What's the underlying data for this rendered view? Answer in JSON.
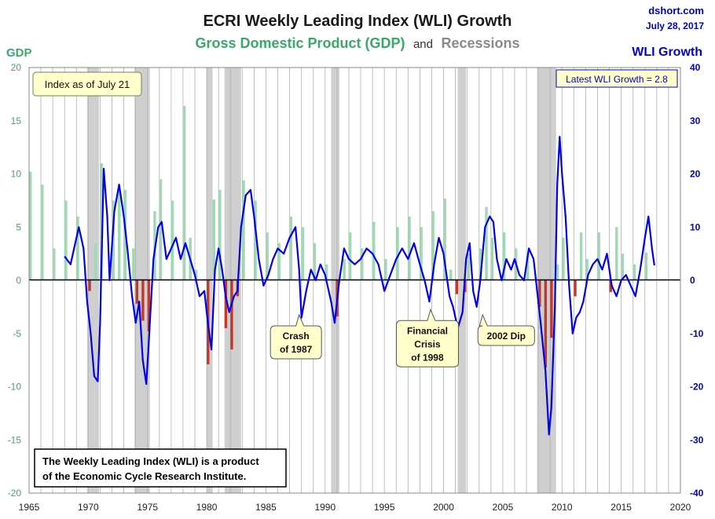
{
  "source": "dshort.com",
  "date": "July 28, 2017",
  "title": "ECRI Weekly Leading Index (WLI) Growth",
  "subtitle_gdp": "Gross Domestic Product (GDP)",
  "subtitle_and": "and",
  "subtitle_rec": "Recessions",
  "left_axis_label": "GDP",
  "right_axis_label": "WLI Growth",
  "index_note": "Index as of July 21",
  "latest_note": "Latest WLI Growth = 2.8",
  "footnote_line1": "The Weekly Leading Index (WLI) is a product",
  "footnote_line2": "of the Economic Cycle Research Institute.",
  "annotations": [
    {
      "lines": [
        "Crash",
        "of 1987"
      ],
      "x": 1987.8,
      "wli": -6.5
    },
    {
      "lines": [
        "Financial",
        "Crisis",
        "of 1998"
      ],
      "x": 1998.9,
      "wli": -5.5
    },
    {
      "lines": [
        "2002 Dip"
      ],
      "x": 2003.3,
      "wli": -6.5
    }
  ],
  "colors": {
    "gdp_positive": "#9fd8b2",
    "gdp_negative": "#c0392b",
    "wli_line": "#0000ee",
    "recession": "#cfcfcf",
    "title": "#1a1a1a",
    "gdp_text": "#3aa86a",
    "rec_text": "#8a8a8a",
    "wli_text": "#0000cc",
    "callout_bg": "#ffffcc"
  },
  "chart_data": {
    "type": "bar+line",
    "xlim": [
      1965,
      2020
    ],
    "x_ticks": [
      1965,
      1970,
      1975,
      1980,
      1985,
      1990,
      1995,
      2000,
      2005,
      2010,
      2015,
      2020
    ],
    "gdp_axis": {
      "label": "GDP",
      "ylim": [
        -20,
        20
      ],
      "ticks": [
        -20,
        -15,
        -10,
        -5,
        0,
        5,
        10,
        15,
        20
      ]
    },
    "wli_axis": {
      "label": "WLI Growth",
      "ylim": [
        -40,
        40
      ],
      "ticks": [
        -40,
        -30,
        -20,
        -10,
        0,
        10,
        20,
        30,
        40
      ]
    },
    "grid": true,
    "recessions": [
      [
        1969.9,
        1970.9
      ],
      [
        1973.9,
        1975.2
      ],
      [
        1980.0,
        1980.5
      ],
      [
        1981.5,
        1982.9
      ],
      [
        1990.5,
        1991.2
      ],
      [
        2001.2,
        2001.9
      ],
      [
        2007.9,
        2009.5
      ]
    ],
    "gdp_series": {
      "name": "Gross Domestic Product (GDP)",
      "points": [
        [
          1965,
          10.2
        ],
        [
          1966,
          9.0
        ],
        [
          1967,
          3.0
        ],
        [
          1968,
          7.5
        ],
        [
          1969,
          6.0
        ],
        [
          1970,
          -1.0
        ],
        [
          1970.5,
          3.5
        ],
        [
          1971,
          11.0
        ],
        [
          1972,
          7.5
        ],
        [
          1972.5,
          8.5
        ],
        [
          1973,
          8.5
        ],
        [
          1973.7,
          3.0
        ],
        [
          1974,
          -2.2
        ],
        [
          1974.5,
          -3.8
        ],
        [
          1975,
          -4.8
        ],
        [
          1975.5,
          6.5
        ],
        [
          1976,
          9.5
        ],
        [
          1977,
          7.5
        ],
        [
          1978,
          16.4
        ],
        [
          1978.5,
          4.0
        ],
        [
          1979,
          1.0
        ],
        [
          1980,
          -7.9
        ],
        [
          1980.5,
          7.6
        ],
        [
          1981,
          8.5
        ],
        [
          1981.5,
          -4.5
        ],
        [
          1982,
          -6.5
        ],
        [
          1982.5,
          -1.5
        ],
        [
          1983,
          9.4
        ],
        [
          1984,
          7.5
        ],
        [
          1985,
          4.5
        ],
        [
          1986,
          3.5
        ],
        [
          1987,
          6.0
        ],
        [
          1988,
          5.0
        ],
        [
          1989,
          3.5
        ],
        [
          1990,
          1.5
        ],
        [
          1990.9,
          -3.4
        ],
        [
          1991.5,
          2.0
        ],
        [
          1992,
          4.5
        ],
        [
          1993,
          3.0
        ],
        [
          1994,
          5.5
        ],
        [
          1995,
          2.0
        ],
        [
          1996,
          5.0
        ],
        [
          1997,
          6.0
        ],
        [
          1998,
          5.0
        ],
        [
          1999,
          6.5
        ],
        [
          2000,
          7.7
        ],
        [
          2000.5,
          1.0
        ],
        [
          2001,
          -1.3
        ],
        [
          2001.7,
          -1.1
        ],
        [
          2002,
          2.5
        ],
        [
          2003,
          3.0
        ],
        [
          2003.5,
          6.9
        ],
        [
          2004,
          4.0
        ],
        [
          2005,
          4.5
        ],
        [
          2006,
          3.0
        ],
        [
          2007,
          2.5
        ],
        [
          2008,
          -2.5
        ],
        [
          2008.5,
          -8.2
        ],
        [
          2009,
          -5.4
        ],
        [
          2009.5,
          1.5
        ],
        [
          2010,
          4.0
        ],
        [
          2011,
          -1.5
        ],
        [
          2011.5,
          4.5
        ],
        [
          2012,
          2.0
        ],
        [
          2013,
          4.5
        ],
        [
          2014,
          -1.1
        ],
        [
          2014.5,
          5.0
        ],
        [
          2015,
          2.5
        ],
        [
          2016,
          1.5
        ],
        [
          2017,
          2.6
        ]
      ]
    },
    "wli_series": {
      "name": "WLI Growth",
      "points": [
        [
          1968.0,
          4.5
        ],
        [
          1968.5,
          3.0
        ],
        [
          1968.8,
          6.0
        ],
        [
          1969.2,
          10.0
        ],
        [
          1969.6,
          6.0
        ],
        [
          1969.9,
          -4.0
        ],
        [
          1970.2,
          -10.0
        ],
        [
          1970.5,
          -18.0
        ],
        [
          1970.8,
          -19.0
        ],
        [
          1971.0,
          -8.0
        ],
        [
          1971.3,
          21.0
        ],
        [
          1971.6,
          12.0
        ],
        [
          1971.8,
          0.0
        ],
        [
          1972.2,
          13.0
        ],
        [
          1972.6,
          18.0
        ],
        [
          1973.0,
          12.0
        ],
        [
          1973.3,
          6.0
        ],
        [
          1973.7,
          -3.0
        ],
        [
          1974.0,
          -8.0
        ],
        [
          1974.3,
          -4.0
        ],
        [
          1974.6,
          -15.0
        ],
        [
          1974.9,
          -19.5
        ],
        [
          1975.1,
          -12.0
        ],
        [
          1975.5,
          4.0
        ],
        [
          1975.9,
          10.0
        ],
        [
          1976.2,
          11.0
        ],
        [
          1976.6,
          4.0
        ],
        [
          1977.0,
          6.0
        ],
        [
          1977.4,
          8.0
        ],
        [
          1977.8,
          4.0
        ],
        [
          1978.2,
          7.0
        ],
        [
          1978.6,
          4.0
        ],
        [
          1979.0,
          1.0
        ],
        [
          1979.4,
          -3.0
        ],
        [
          1979.8,
          -2.0
        ],
        [
          1980.1,
          -8.0
        ],
        [
          1980.4,
          -13.0
        ],
        [
          1980.7,
          2.0
        ],
        [
          1981.0,
          6.0
        ],
        [
          1981.3,
          2.0
        ],
        [
          1981.6,
          -3.0
        ],
        [
          1981.9,
          -6.0
        ],
        [
          1982.3,
          -3.0
        ],
        [
          1982.6,
          -2.0
        ],
        [
          1982.9,
          10.0
        ],
        [
          1983.3,
          16.0
        ],
        [
          1983.7,
          17.0
        ],
        [
          1984.0,
          12.0
        ],
        [
          1984.4,
          4.0
        ],
        [
          1984.8,
          -1.0
        ],
        [
          1985.2,
          1.0
        ],
        [
          1985.6,
          4.0
        ],
        [
          1986.0,
          6.0
        ],
        [
          1986.5,
          5.0
        ],
        [
          1987.0,
          8.0
        ],
        [
          1987.5,
          10.0
        ],
        [
          1987.8,
          2.0
        ],
        [
          1988.0,
          -7.0
        ],
        [
          1988.4,
          -2.0
        ],
        [
          1988.8,
          2.0
        ],
        [
          1989.2,
          0.0
        ],
        [
          1989.6,
          3.0
        ],
        [
          1990.0,
          1.0
        ],
        [
          1990.5,
          -4.0
        ],
        [
          1990.8,
          -8.0
        ],
        [
          1991.2,
          0.0
        ],
        [
          1991.6,
          6.0
        ],
        [
          1992.0,
          4.0
        ],
        [
          1992.5,
          3.0
        ],
        [
          1993.0,
          4.0
        ],
        [
          1993.5,
          6.0
        ],
        [
          1994.0,
          5.0
        ],
        [
          1994.5,
          3.0
        ],
        [
          1995.0,
          -2.0
        ],
        [
          1995.5,
          1.0
        ],
        [
          1996.0,
          4.0
        ],
        [
          1996.5,
          6.0
        ],
        [
          1997.0,
          4.0
        ],
        [
          1997.5,
          7.0
        ],
        [
          1998.0,
          3.0
        ],
        [
          1998.4,
          0.0
        ],
        [
          1998.8,
          -4.0
        ],
        [
          1999.2,
          3.0
        ],
        [
          1999.6,
          8.0
        ],
        [
          2000.0,
          5.0
        ],
        [
          2000.5,
          -3.0
        ],
        [
          2000.8,
          -5.0
        ],
        [
          2001.2,
          -9.0
        ],
        [
          2001.6,
          -6.0
        ],
        [
          2001.9,
          4.0
        ],
        [
          2002.2,
          7.0
        ],
        [
          2002.5,
          -2.0
        ],
        [
          2002.8,
          -5.0
        ],
        [
          2003.1,
          0.0
        ],
        [
          2003.5,
          10.0
        ],
        [
          2003.9,
          12.0
        ],
        [
          2004.2,
          11.0
        ],
        [
          2004.5,
          4.0
        ],
        [
          2004.9,
          0.0
        ],
        [
          2005.3,
          4.0
        ],
        [
          2005.7,
          2.0
        ],
        [
          2006.0,
          4.0
        ],
        [
          2006.4,
          1.0
        ],
        [
          2006.8,
          0.0
        ],
        [
          2007.2,
          6.0
        ],
        [
          2007.6,
          4.0
        ],
        [
          2007.9,
          -2.0
        ],
        [
          2008.2,
          -8.0
        ],
        [
          2008.6,
          -17.0
        ],
        [
          2008.9,
          -29.0
        ],
        [
          2009.1,
          -24.0
        ],
        [
          2009.4,
          -5.0
        ],
        [
          2009.6,
          18.0
        ],
        [
          2009.8,
          27.0
        ],
        [
          2010.0,
          20.0
        ],
        [
          2010.3,
          12.0
        ],
        [
          2010.6,
          -1.0
        ],
        [
          2010.9,
          -10.0
        ],
        [
          2011.2,
          -7.0
        ],
        [
          2011.5,
          -6.0
        ],
        [
          2011.8,
          -4.0
        ],
        [
          2012.2,
          1.0
        ],
        [
          2012.6,
          3.0
        ],
        [
          2013.0,
          4.0
        ],
        [
          2013.4,
          2.0
        ],
        [
          2013.8,
          5.0
        ],
        [
          2014.2,
          -1.0
        ],
        [
          2014.6,
          -3.0
        ],
        [
          2015.0,
          0.0
        ],
        [
          2015.4,
          1.0
        ],
        [
          2015.8,
          -1.0
        ],
        [
          2016.2,
          -3.0
        ],
        [
          2016.6,
          2.0
        ],
        [
          2017.0,
          8.0
        ],
        [
          2017.3,
          12.0
        ],
        [
          2017.6,
          6.0
        ],
        [
          2017.8,
          2.8
        ]
      ]
    }
  }
}
